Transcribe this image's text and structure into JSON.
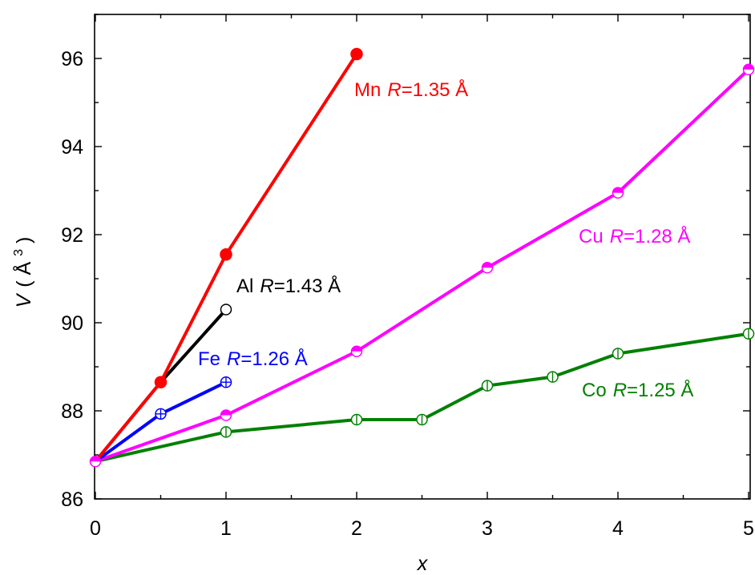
{
  "chart_data": {
    "type": "line",
    "xlabel": "x",
    "ylabel": {
      "main": "V",
      "unit": "Å",
      "exponent": "3"
    },
    "xlim": [
      0,
      5
    ],
    "ylim": [
      86,
      97
    ],
    "x_ticks": [
      "0",
      "1",
      "2",
      "3",
      "4",
      "5"
    ],
    "y_ticks": [
      "86",
      "88",
      "90",
      "92",
      "94",
      "96"
    ],
    "grid": false,
    "legend": "none",
    "series": [
      {
        "key": "mn",
        "color": "#ff0000",
        "marker": "filled-circle",
        "x": [
          0,
          0.5,
          1,
          2
        ],
        "y": [
          86.85,
          88.65,
          91.55,
          96.1
        ],
        "label": {
          "element": "Mn",
          "symbol": "R",
          "value": "=1.35 Å"
        }
      },
      {
        "key": "al",
        "color": "#000000",
        "marker": "open-circle",
        "x": [
          0,
          0.5,
          1
        ],
        "y": [
          86.85,
          88.65,
          90.3
        ],
        "label": {
          "element": "Al",
          "symbol": "R",
          "value": "=1.43 Å"
        }
      },
      {
        "key": "fe",
        "color": "#0000ff",
        "marker": "crossed-circle",
        "x": [
          0,
          0.5,
          1
        ],
        "y": [
          86.85,
          87.93,
          88.65
        ],
        "label": {
          "element": "Fe",
          "symbol": "R",
          "value": "=1.26 Å"
        }
      },
      {
        "key": "cu",
        "color": "#ff00ff",
        "marker": "half-filled-circle",
        "x": [
          0,
          1,
          2,
          3,
          4,
          5
        ],
        "y": [
          86.85,
          87.9,
          89.35,
          91.25,
          92.95,
          95.75
        ],
        "label": {
          "element": "Cu",
          "symbol": "R",
          "value": "=1.28 Å"
        }
      },
      {
        "key": "co",
        "color": "#008000",
        "marker": "vbar-circle",
        "x": [
          0,
          1,
          2,
          2.5,
          3,
          3.5,
          4,
          5
        ],
        "y": [
          86.85,
          87.52,
          87.8,
          87.8,
          88.57,
          88.77,
          89.3,
          89.75
        ],
        "label": {
          "element": "Co",
          "symbol": "R",
          "value": "=1.25 Å"
        }
      }
    ]
  }
}
